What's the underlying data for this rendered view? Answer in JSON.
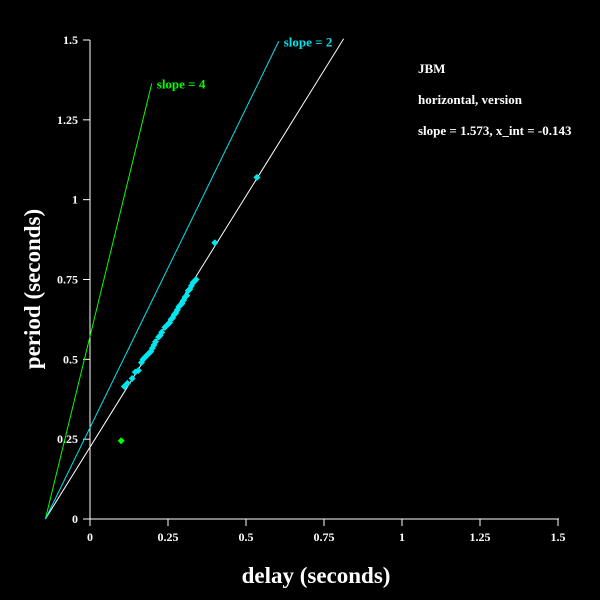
{
  "chart_data": {
    "type": "scatter",
    "xlabel": "delay (seconds)",
    "ylabel": "period (seconds)",
    "xlim": [
      0,
      1.5
    ],
    "ylim": [
      0,
      1.5
    ],
    "xticks": [
      0,
      0.25,
      0.5,
      0.75,
      1,
      1.25,
      1.5
    ],
    "yticks": [
      0,
      0.25,
      0.5,
      0.75,
      1,
      1.25,
      1.5
    ],
    "xtick_labels": [
      "0",
      "0.25",
      "0.5",
      "0.75",
      "1",
      "1.25",
      "1.5"
    ],
    "ytick_labels": [
      "0",
      "0.25",
      "0.5",
      "0.75",
      "1",
      "1.25",
      "1.5"
    ],
    "background_color": "#000000",
    "axis_color": "#ffffff",
    "grid": false,
    "annotations": {
      "name": "JBM",
      "condition": "horizontal, version",
      "fit_text": "slope = 1.573, x_int = -0.143"
    },
    "fit_line": {
      "slope": 1.573,
      "x_intercept": -0.143,
      "x_start": -0.143,
      "x_end": 0.813,
      "color": "#ffffff"
    },
    "reference_lines": [
      {
        "label": "slope = 4",
        "slope": 4,
        "x_intercept": -0.143,
        "x_end": 0.198,
        "color": "#00ff00"
      },
      {
        "label": "slope = 2",
        "slope": 2,
        "x_intercept": -0.143,
        "x_end": 0.605,
        "color": "#00e5ee"
      }
    ],
    "series": [
      {
        "color": "#00e5ee",
        "points": [
          [
            0.11,
            0.415
          ],
          [
            0.12,
            0.425
          ],
          [
            0.135,
            0.44
          ],
          [
            0.145,
            0.46
          ],
          [
            0.155,
            0.465
          ],
          [
            0.165,
            0.49
          ],
          [
            0.17,
            0.5
          ],
          [
            0.175,
            0.505
          ],
          [
            0.18,
            0.51
          ],
          [
            0.185,
            0.515
          ],
          [
            0.19,
            0.52
          ],
          [
            0.195,
            0.525
          ],
          [
            0.2,
            0.535
          ],
          [
            0.205,
            0.545
          ],
          [
            0.21,
            0.555
          ],
          [
            0.22,
            0.57
          ],
          [
            0.225,
            0.575
          ],
          [
            0.23,
            0.585
          ],
          [
            0.24,
            0.6
          ],
          [
            0.25,
            0.61
          ],
          [
            0.255,
            0.615
          ],
          [
            0.26,
            0.625
          ],
          [
            0.265,
            0.63
          ],
          [
            0.27,
            0.64
          ],
          [
            0.275,
            0.645
          ],
          [
            0.28,
            0.655
          ],
          [
            0.285,
            0.665
          ],
          [
            0.29,
            0.67
          ],
          [
            0.295,
            0.675
          ],
          [
            0.3,
            0.685
          ],
          [
            0.305,
            0.695
          ],
          [
            0.31,
            0.7
          ],
          [
            0.315,
            0.715
          ],
          [
            0.32,
            0.72
          ],
          [
            0.325,
            0.73
          ],
          [
            0.33,
            0.74
          ],
          [
            0.335,
            0.745
          ],
          [
            0.34,
            0.75
          ],
          [
            0.4,
            0.865
          ],
          [
            0.535,
            1.07
          ]
        ]
      },
      {
        "color": "#00ff00",
        "points": [
          [
            0.1,
            0.245
          ]
        ]
      }
    ]
  }
}
